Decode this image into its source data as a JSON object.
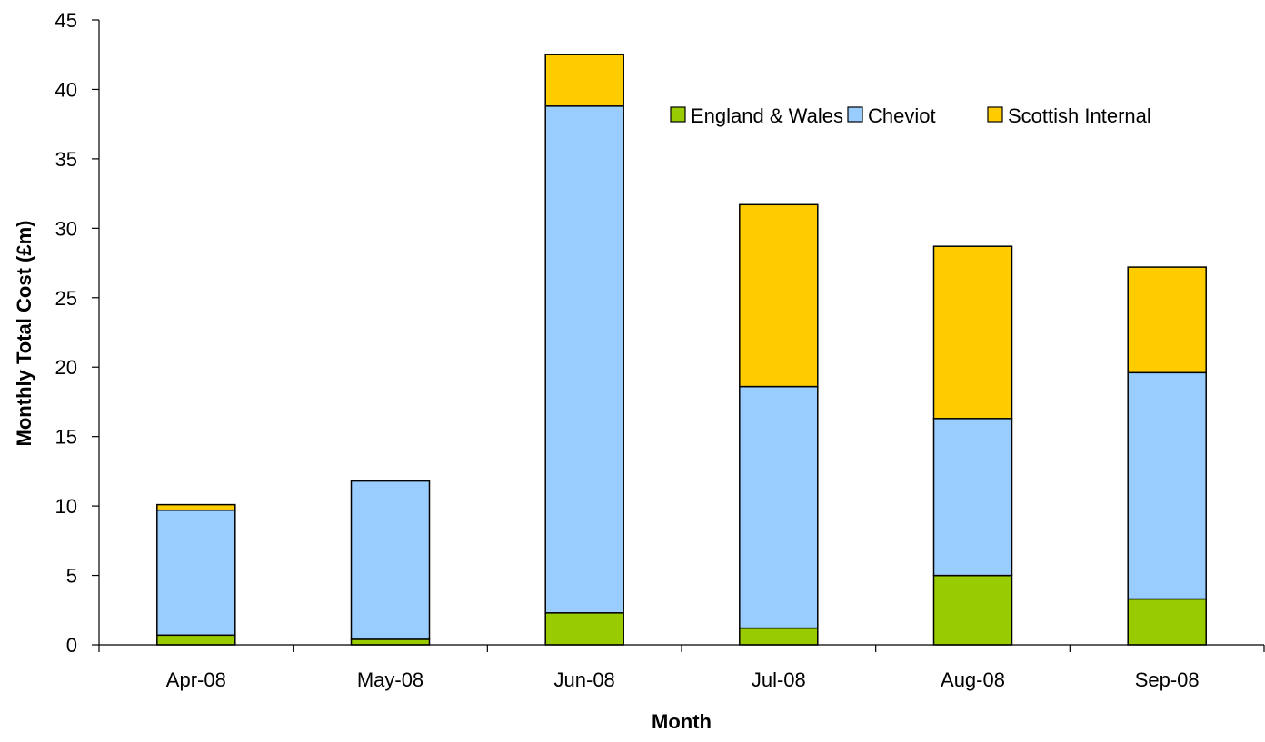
{
  "chart_data": {
    "type": "bar",
    "stacked": true,
    "title": "",
    "xlabel": "Month",
    "ylabel": "Monthly Total Cost (£m)",
    "ylim": [
      0,
      45
    ],
    "yticks": [
      0,
      5,
      10,
      15,
      20,
      25,
      30,
      35,
      40,
      45
    ],
    "ytick_labels": [
      "0",
      "5",
      "10",
      "15",
      "20",
      "25",
      "30",
      "35",
      "40",
      "45"
    ],
    "grid": false,
    "legend_position": "top-right",
    "categories": [
      "Apr-08",
      "May-08",
      "Jun-08",
      "Jul-08",
      "Aug-08",
      "Sep-08"
    ],
    "series": [
      {
        "name": "England & Wales",
        "color": "#99cc00",
        "values": [
          0.7,
          0.4,
          2.3,
          1.2,
          5.0,
          3.3
        ]
      },
      {
        "name": "Cheviot",
        "color": "#99ccff",
        "values": [
          9.0,
          11.4,
          36.5,
          17.4,
          11.3,
          16.3
        ]
      },
      {
        "name": "Scottish Internal",
        "color": "#ffcc00",
        "values": [
          0.4,
          0.0,
          3.7,
          13.1,
          12.4,
          7.6
        ]
      }
    ]
  }
}
